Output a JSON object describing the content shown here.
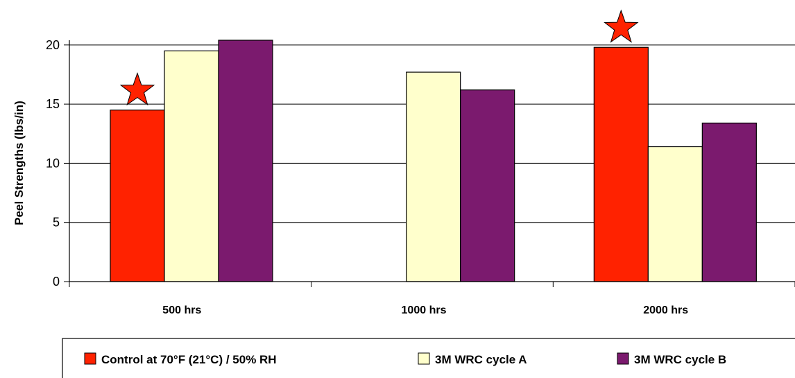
{
  "chart_data": {
    "type": "bar",
    "categories": [
      "500 hrs",
      "1000 hrs",
      "2000 hrs"
    ],
    "series": [
      {
        "name": "Control at 70°F (21°C) / 50% RH",
        "color": "#ff2200",
        "values": [
          14.5,
          null,
          19.8
        ]
      },
      {
        "name": "3M WRC cycle A",
        "color": "#ffffcc",
        "values": [
          19.5,
          17.7,
          11.4
        ]
      },
      {
        "name": "3M WRC cycle B",
        "color": "#7b1a6e",
        "values": [
          20.4,
          16.2,
          13.4
        ]
      }
    ],
    "ylabel": "Peel Strengths (lbs/in)",
    "xlabel": "",
    "ylim": [
      0,
      20.4
    ],
    "yticks": [
      0,
      5,
      10,
      15,
      20
    ],
    "grid": true,
    "legend_position": "bottom",
    "annotations": [
      {
        "icon": "star-icon",
        "category": "500 hrs",
        "series": "Control at 70°F (21°C) / 50% RH",
        "color": "#ff2200"
      },
      {
        "icon": "star-icon",
        "category": "2000 hrs",
        "series": "Control at 70°F (21°C) / 50% RH",
        "color": "#ff2200"
      }
    ]
  }
}
